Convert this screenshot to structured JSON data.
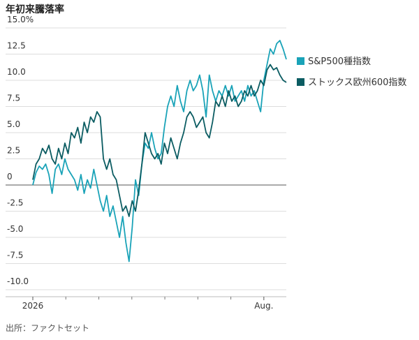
{
  "chart_data": {
    "type": "line",
    "title": "年初来騰落率",
    "source": "出所：ファクトセット",
    "categories": [
      "2026",
      null,
      null,
      null,
      null,
      null,
      null,
      null,
      null,
      null,
      null,
      null,
      null,
      null,
      null,
      null,
      null,
      null,
      null,
      null,
      null,
      null,
      null,
      null,
      null,
      null,
      null,
      null,
      null,
      null,
      null,
      null,
      null,
      null,
      null,
      null,
      null,
      null,
      null,
      null,
      null,
      null,
      null,
      null,
      null,
      null,
      null,
      null,
      null,
      null,
      null,
      null,
      null,
      null,
      null,
      null,
      null,
      null,
      null,
      null,
      null,
      null,
      null,
      null,
      null,
      null,
      null,
      null,
      null,
      null,
      null,
      null,
      "Aug.",
      null,
      null,
      null,
      null,
      null,
      null,
      null
    ],
    "series": [
      {
        "name": "S&P500種指数",
        "color": "#1aa3b8",
        "values": [
          0,
          1.2,
          1.8,
          1.5,
          2.0,
          1.0,
          -0.8,
          1.5,
          2.0,
          1.0,
          2.5,
          1.5,
          1.0,
          0.5,
          -0.5,
          1.0,
          -0.8,
          0.5,
          -0.3,
          1.5,
          0.0,
          -1.5,
          -2.5,
          -1.0,
          -3.0,
          -2.0,
          -3.5,
          -5.0,
          -3.0,
          -5.5,
          -7.3,
          -4.0,
          0.5,
          -1.0,
          2.0,
          4.0,
          3.5,
          5.0,
          3.5,
          2.5,
          3.0,
          5.5,
          7.5,
          8.5,
          7.5,
          9.5,
          8.0,
          7.0,
          9.0,
          10.0,
          9.0,
          9.5,
          10.5,
          9.0,
          6.5,
          10.5,
          9.0,
          8.0,
          9.0,
          8.5,
          9.5,
          8.5,
          9.5,
          8.0,
          8.5,
          9.0,
          8.0,
          9.5,
          8.5,
          9.0,
          8.0,
          7.0,
          10.0,
          11.5,
          13.0,
          12.5,
          13.5,
          13.8,
          13.0,
          12.0
        ]
      },
      {
        "name": "ストックス欧州600指数",
        "color": "#0b5c62",
        "values": [
          0.5,
          2.0,
          2.5,
          3.5,
          3.0,
          3.8,
          2.5,
          2.0,
          3.5,
          2.5,
          4.0,
          3.0,
          5.0,
          4.5,
          5.5,
          4.0,
          6.0,
          5.0,
          6.5,
          6.0,
          7.0,
          6.5,
          2.5,
          1.5,
          2.5,
          1.0,
          0.5,
          -1.0,
          -2.5,
          -2.0,
          -3.0,
          -1.5,
          -2.5,
          -0.5,
          2.0,
          5.0,
          4.0,
          3.0,
          2.5,
          3.0,
          2.0,
          4.0,
          3.0,
          4.5,
          3.5,
          2.5,
          4.0,
          5.0,
          6.5,
          7.0,
          6.5,
          5.5,
          6.0,
          6.5,
          5.0,
          4.5,
          6.0,
          8.0,
          7.5,
          8.5,
          7.5,
          9.0,
          8.0,
          8.5,
          7.5,
          8.0,
          9.0,
          8.5,
          9.5,
          8.5,
          9.0,
          10.0,
          9.5,
          11.0,
          11.5,
          11.0,
          11.2,
          10.5,
          10.0,
          9.8
        ]
      }
    ],
    "ylim": [
      -10,
      15
    ],
    "yticks": [
      {
        "value": -10,
        "label": "-10.0"
      },
      -7.5,
      {
        "value": -5,
        "label": "-5.0"
      },
      -2.5,
      0,
      2.5,
      {
        "value": 5,
        "label": "5.0"
      },
      7.5,
      {
        "value": 10,
        "label": "10.0"
      },
      12.5,
      {
        "value": 15,
        "label": "15.0%"
      }
    ],
    "grid": true
  }
}
